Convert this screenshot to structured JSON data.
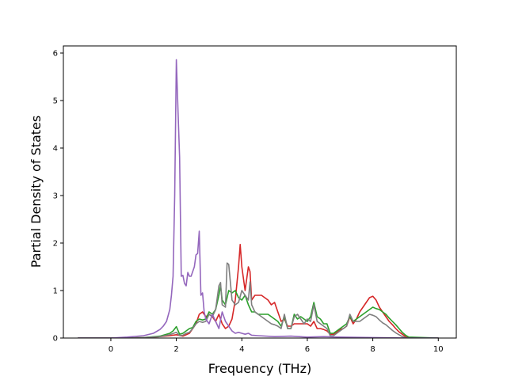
{
  "chart_data": {
    "type": "line",
    "title": "",
    "xlabel": "Frequency (THz)",
    "ylabel": "Partial Density of States",
    "xlim": [
      -1.45,
      10.55
    ],
    "ylim": [
      0,
      6.15
    ],
    "xticks": [
      0,
      2,
      4,
      6,
      8,
      10
    ],
    "yticks": [
      0,
      1,
      2,
      3,
      4,
      5,
      6
    ],
    "grid": false,
    "legend": "none",
    "series": [
      {
        "color": "#d62728",
        "x": [
          -1,
          0,
          0.5,
          1,
          1.5,
          1.8,
          2.0,
          2.2,
          2.4,
          2.6,
          2.7,
          2.8,
          2.9,
          3.0,
          3.1,
          3.2,
          3.3,
          3.4,
          3.5,
          3.6,
          3.7,
          3.8,
          3.9,
          3.95,
          4.0,
          4.1,
          4.2,
          4.25,
          4.3,
          4.4,
          4.5,
          4.6,
          4.7,
          4.8,
          4.9,
          5.0,
          5.1,
          5.2,
          5.3,
          5.4,
          5.5,
          5.6,
          5.7,
          5.8,
          5.9,
          6.0,
          6.1,
          6.2,
          6.3,
          6.4,
          6.5,
          6.6,
          6.7,
          6.8,
          6.9,
          7.0,
          7.1,
          7.2,
          7.3,
          7.4,
          7.5,
          7.6,
          7.7,
          7.8,
          7.9,
          8.0,
          8.1,
          8.2,
          8.3,
          8.4,
          8.5,
          8.6,
          8.7,
          8.8,
          8.9,
          9.0,
          9.1,
          10
        ],
        "y": [
          0,
          0,
          0,
          0.01,
          0.03,
          0.05,
          0.07,
          0.04,
          0.1,
          0.3,
          0.5,
          0.55,
          0.45,
          0.5,
          0.45,
          0.35,
          0.5,
          0.3,
          0.2,
          0.25,
          0.4,
          0.8,
          1.5,
          1.97,
          1.5,
          1.0,
          1.5,
          1.4,
          0.8,
          0.9,
          0.9,
          0.9,
          0.85,
          0.8,
          0.7,
          0.75,
          0.55,
          0.35,
          0.4,
          0.25,
          0.25,
          0.3,
          0.3,
          0.3,
          0.3,
          0.3,
          0.25,
          0.35,
          0.2,
          0.2,
          0.18,
          0.15,
          0.08,
          0.08,
          0.12,
          0.18,
          0.2,
          0.25,
          0.45,
          0.3,
          0.4,
          0.55,
          0.65,
          0.75,
          0.85,
          0.88,
          0.8,
          0.65,
          0.55,
          0.45,
          0.35,
          0.28,
          0.2,
          0.13,
          0.08,
          0.03,
          0,
          0
        ]
      },
      {
        "color": "#2ca02c",
        "x": [
          -1,
          0,
          0.5,
          1,
          1.5,
          1.8,
          1.9,
          2.0,
          2.1,
          2.2,
          2.3,
          2.4,
          2.5,
          2.6,
          2.7,
          2.8,
          2.9,
          3.0,
          3.1,
          3.2,
          3.3,
          3.35,
          3.4,
          3.5,
          3.6,
          3.7,
          3.8,
          3.9,
          4.0,
          4.1,
          4.2,
          4.3,
          4.4,
          4.5,
          4.6,
          4.7,
          4.8,
          4.9,
          5.0,
          5.1,
          5.2,
          5.3,
          5.4,
          5.5,
          5.6,
          5.7,
          5.8,
          5.9,
          6.0,
          6.1,
          6.2,
          6.3,
          6.4,
          6.5,
          6.6,
          6.7,
          6.8,
          6.9,
          7.0,
          7.1,
          7.2,
          7.3,
          7.4,
          7.5,
          7.6,
          7.7,
          7.8,
          7.9,
          8.0,
          8.1,
          8.2,
          8.3,
          8.4,
          8.5,
          8.6,
          8.7,
          8.8,
          8.9,
          9.0,
          9.1,
          10
        ],
        "y": [
          0,
          0,
          0,
          0.01,
          0.04,
          0.1,
          0.15,
          0.24,
          0.08,
          0.1,
          0.15,
          0.2,
          0.22,
          0.35,
          0.4,
          0.38,
          0.4,
          0.55,
          0.5,
          0.6,
          0.9,
          1.1,
          0.8,
          0.7,
          1.0,
          0.95,
          1.0,
          0.85,
          0.8,
          0.9,
          0.7,
          0.55,
          0.55,
          0.5,
          0.5,
          0.5,
          0.5,
          0.45,
          0.4,
          0.35,
          0.25,
          0.45,
          0.2,
          0.2,
          0.5,
          0.4,
          0.45,
          0.4,
          0.35,
          0.45,
          0.75,
          0.45,
          0.4,
          0.3,
          0.3,
          0.1,
          0.1,
          0.15,
          0.2,
          0.25,
          0.3,
          0.45,
          0.35,
          0.4,
          0.45,
          0.5,
          0.55,
          0.6,
          0.65,
          0.62,
          0.6,
          0.55,
          0.5,
          0.42,
          0.35,
          0.28,
          0.2,
          0.12,
          0.06,
          0.02,
          0
        ]
      },
      {
        "color": "#7f7f7f",
        "x": [
          -1,
          0,
          0.5,
          1,
          1.5,
          1.8,
          2.0,
          2.1,
          2.2,
          2.3,
          2.4,
          2.5,
          2.6,
          2.7,
          2.8,
          2.9,
          3.0,
          3.1,
          3.2,
          3.3,
          3.35,
          3.4,
          3.5,
          3.55,
          3.6,
          3.7,
          3.8,
          3.9,
          4.0,
          4.1,
          4.2,
          4.25,
          4.3,
          4.4,
          4.5,
          4.6,
          4.7,
          4.8,
          4.9,
          5.0,
          5.1,
          5.2,
          5.3,
          5.4,
          5.5,
          5.6,
          5.7,
          5.8,
          5.9,
          6.0,
          6.1,
          6.2,
          6.3,
          6.4,
          6.5,
          6.6,
          6.7,
          6.8,
          6.9,
          7.0,
          7.1,
          7.2,
          7.3,
          7.4,
          7.5,
          7.6,
          7.7,
          7.8,
          7.9,
          8.0,
          8.1,
          8.2,
          8.3,
          8.4,
          8.5,
          8.6,
          8.7,
          8.8,
          8.9,
          9.0,
          9.1,
          10
        ],
        "y": [
          0,
          0,
          0,
          0.01,
          0.03,
          0.07,
          0.12,
          0.05,
          0.06,
          0.1,
          0.12,
          0.2,
          0.3,
          0.35,
          0.33,
          0.35,
          0.5,
          0.45,
          0.6,
          1.1,
          1.17,
          0.7,
          0.65,
          1.58,
          1.55,
          0.8,
          0.7,
          0.75,
          1.0,
          0.9,
          0.8,
          1.18,
          0.7,
          0.55,
          0.5,
          0.45,
          0.4,
          0.35,
          0.3,
          0.28,
          0.25,
          0.2,
          0.5,
          0.2,
          0.2,
          0.45,
          0.5,
          0.4,
          0.3,
          0.4,
          0.35,
          0.7,
          0.35,
          0.3,
          0.25,
          0.2,
          0.05,
          0.05,
          0.1,
          0.15,
          0.2,
          0.25,
          0.5,
          0.35,
          0.35,
          0.35,
          0.4,
          0.45,
          0.5,
          0.48,
          0.45,
          0.38,
          0.32,
          0.28,
          0.22,
          0.16,
          0.11,
          0.07,
          0.03,
          0.01,
          0,
          0
        ]
      },
      {
        "color": "#9467bd",
        "x": [
          -1,
          0,
          0.5,
          1,
          1.3,
          1.5,
          1.6,
          1.7,
          1.8,
          1.85,
          1.9,
          1.95,
          2.0,
          2.05,
          2.1,
          2.15,
          2.2,
          2.25,
          2.3,
          2.35,
          2.4,
          2.45,
          2.5,
          2.55,
          2.6,
          2.65,
          2.7,
          2.75,
          2.8,
          2.85,
          2.9,
          3.0,
          3.1,
          3.2,
          3.3,
          3.4,
          3.5,
          3.6,
          3.7,
          3.8,
          3.9,
          4.0,
          4.1,
          4.2,
          4.3,
          4.5,
          5.0,
          5.5,
          6.0,
          6.5,
          7.0,
          8.0,
          9.0,
          10
        ],
        "y": [
          0,
          0.0,
          0.02,
          0.05,
          0.1,
          0.18,
          0.25,
          0.35,
          0.6,
          0.9,
          1.3,
          3.0,
          5.86,
          4.8,
          3.8,
          1.3,
          1.32,
          1.15,
          1.1,
          1.38,
          1.3,
          1.3,
          1.4,
          1.5,
          1.75,
          1.78,
          2.25,
          0.9,
          0.95,
          0.55,
          0.4,
          0.3,
          0.5,
          0.35,
          0.2,
          0.55,
          0.35,
          0.25,
          0.15,
          0.1,
          0.12,
          0.1,
          0.08,
          0.1,
          0.06,
          0.05,
          0.03,
          0.04,
          0.02,
          0.03,
          0.02,
          0.01,
          0.0,
          0
        ]
      }
    ]
  }
}
